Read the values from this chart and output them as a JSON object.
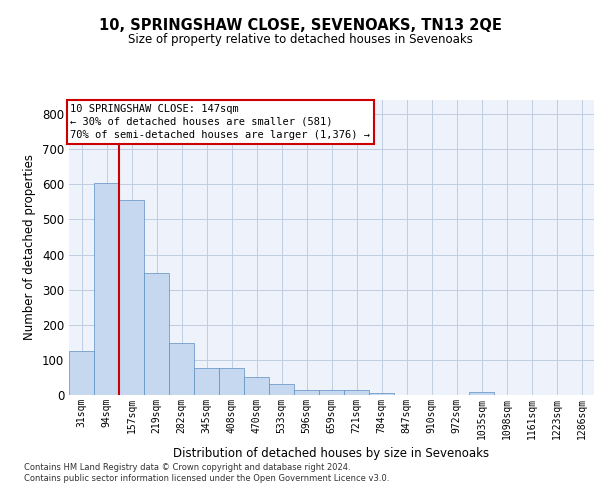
{
  "title": "10, SPRINGSHAW CLOSE, SEVENOAKS, TN13 2QE",
  "subtitle": "Size of property relative to detached houses in Sevenoaks",
  "xlabel": "Distribution of detached houses by size in Sevenoaks",
  "ylabel": "Number of detached properties",
  "categories": [
    "31sqm",
    "94sqm",
    "157sqm",
    "219sqm",
    "282sqm",
    "345sqm",
    "408sqm",
    "470sqm",
    "533sqm",
    "596sqm",
    "659sqm",
    "721sqm",
    "784sqm",
    "847sqm",
    "910sqm",
    "972sqm",
    "1035sqm",
    "1098sqm",
    "1161sqm",
    "1223sqm",
    "1286sqm"
  ],
  "values": [
    125,
    603,
    554,
    347,
    147,
    77,
    77,
    51,
    31,
    15,
    13,
    13,
    6,
    0,
    0,
    0,
    8,
    0,
    0,
    0,
    0
  ],
  "bar_color": "#c5d8f0",
  "bar_edge_color": "#5a8fc0",
  "background_color": "#eef2fb",
  "grid_color": "#c0cce0",
  "ylim": [
    0,
    840
  ],
  "yticks": [
    0,
    100,
    200,
    300,
    400,
    500,
    600,
    700,
    800
  ],
  "annotation_line1": "10 SPRINGSHAW CLOSE: 147sqm",
  "annotation_line2": "← 30% of detached houses are smaller (581)",
  "annotation_line3": "70% of semi-detached houses are larger (1,376) →",
  "annotation_box_color": "#ffffff",
  "annotation_border_color": "#cc0000",
  "property_line_x": 1.5,
  "footer_line1": "Contains HM Land Registry data © Crown copyright and database right 2024.",
  "footer_line2": "Contains public sector information licensed under the Open Government Licence v3.0."
}
